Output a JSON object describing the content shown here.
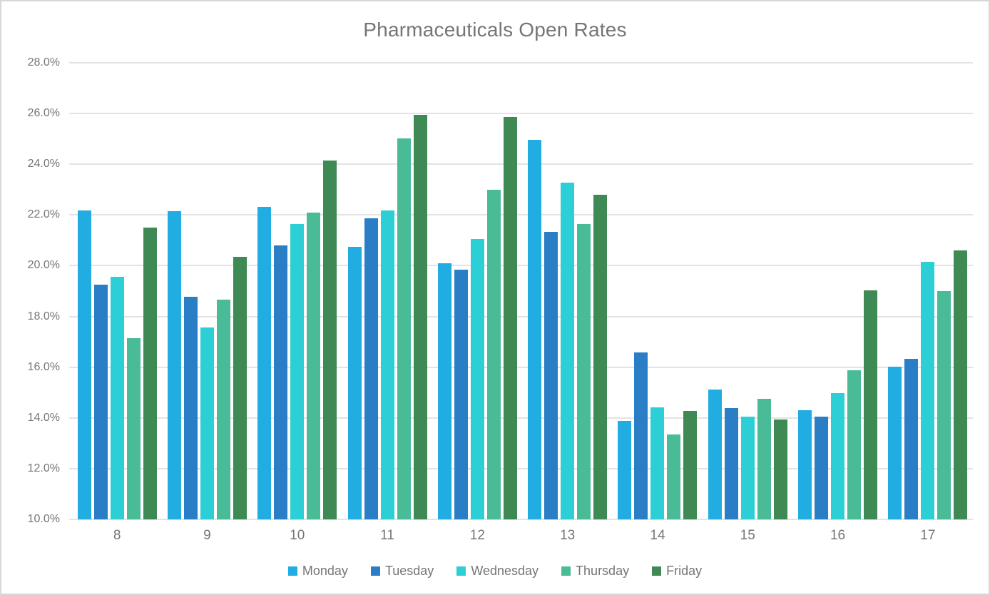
{
  "title": "Pharmaceuticals Open Rates",
  "chart_data": {
    "type": "bar",
    "title": "Pharmaceuticals Open Rates",
    "categories": [
      "8",
      "9",
      "10",
      "11",
      "12",
      "13",
      "14",
      "15",
      "16",
      "17"
    ],
    "series": [
      {
        "name": "Monday",
        "color": "#21ADE2",
        "values": [
          22.17,
          22.16,
          22.33,
          20.75,
          20.1,
          24.95,
          13.88,
          15.12,
          14.3,
          16.02
        ]
      },
      {
        "name": "Tuesday",
        "color": "#2A7EC5",
        "values": [
          19.24,
          18.77,
          20.81,
          21.88,
          19.85,
          21.33,
          16.58,
          14.4,
          14.05,
          16.32
        ]
      },
      {
        "name": "Wednesday",
        "color": "#2DCFD6",
        "values": [
          19.57,
          17.56,
          21.65,
          22.18,
          21.06,
          23.28,
          14.41,
          14.05,
          14.97,
          20.16
        ]
      },
      {
        "name": "Thursday",
        "color": "#49BB96",
        "values": [
          17.13,
          18.65,
          22.08,
          25.01,
          22.98,
          21.65,
          13.34,
          14.76,
          15.88,
          18.99
        ]
      },
      {
        "name": "Friday",
        "color": "#3F8A54",
        "values": [
          21.51,
          20.36,
          24.16,
          25.96,
          25.85,
          22.81,
          14.28,
          13.93,
          19.03,
          20.6
        ]
      }
    ],
    "ylim": [
      10,
      28
    ],
    "y_tick_step": 2,
    "y_tick_labels": [
      "10.0%",
      "12.0%",
      "14.0%",
      "16.0%",
      "18.0%",
      "20.0%",
      "22.0%",
      "24.0%",
      "26.0%",
      "28.0%"
    ],
    "xlabel": "",
    "ylabel": "",
    "grid": true,
    "legend_position": "bottom",
    "legend": [
      "Monday",
      "Tuesday",
      "Wednesday",
      "Thursday",
      "Friday"
    ]
  },
  "colors": {
    "text": "#757575",
    "gridline": "#e3e3e3",
    "border": "#d7d7d7",
    "background": "#ffffff"
  }
}
